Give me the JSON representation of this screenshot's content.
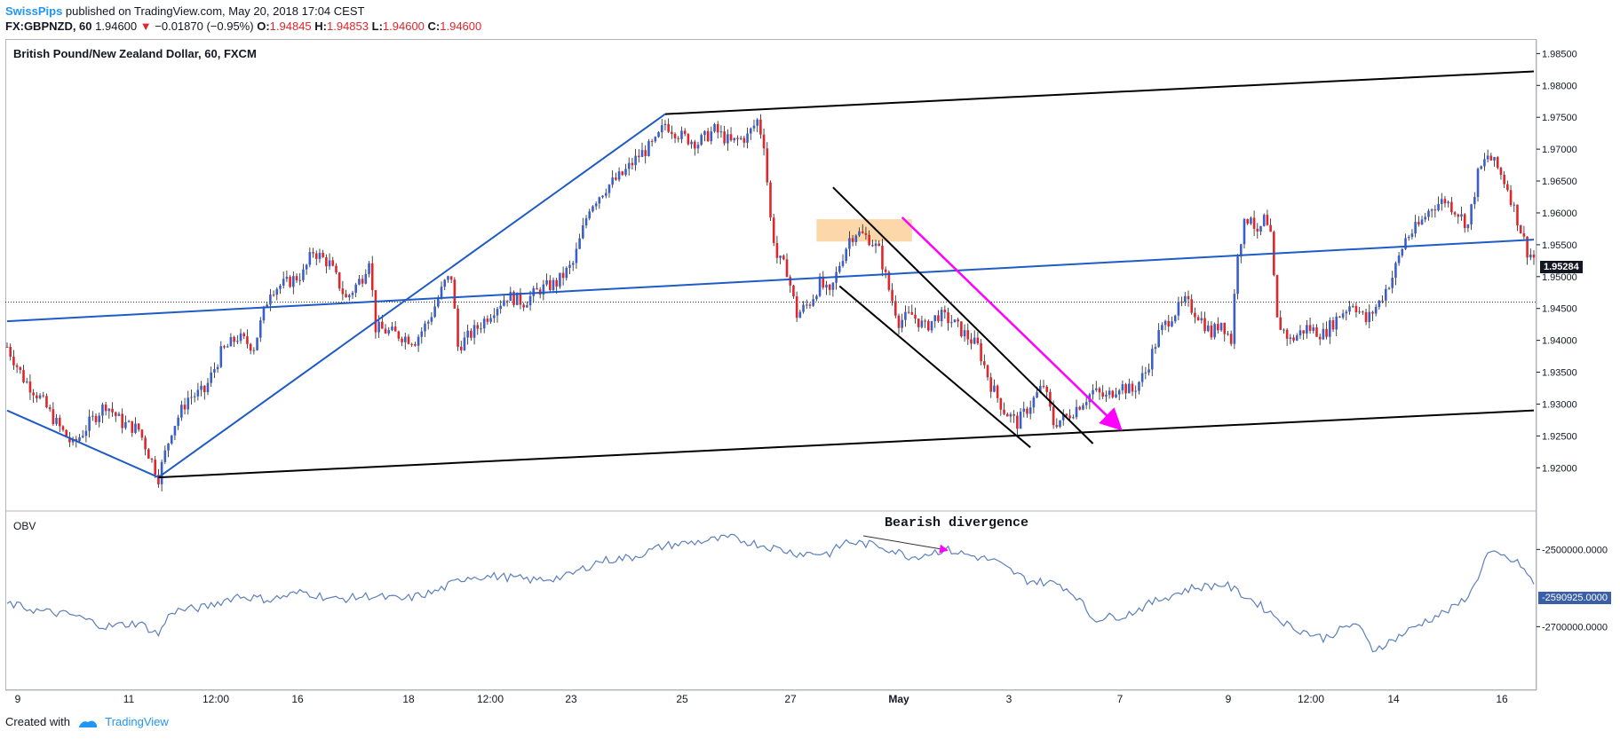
{
  "header": {
    "author": "SwissPips",
    "published_text": " published on TradingView.com, May 20, 2018 17:04 CEST",
    "symbol": "FX:GBPNZD, 60",
    "last": "1.94600",
    "change_arrow": "▼",
    "change": "−0.01870 (−0.95%)",
    "o_label": "O:",
    "o": "1.94845",
    "h_label": "H:",
    "h": "1.94853",
    "l_label": "L:",
    "l": "1.94600",
    "c_label": "C:",
    "c": "1.94600"
  },
  "footer": {
    "created_with": "Created with",
    "brand": "TradingView"
  },
  "colors": {
    "up": "#3a5fc8",
    "down": "#e0262b",
    "trendline_blue": "#1e5bc6",
    "channel_black": "#000000",
    "arrow_magenta": "#ff00ff",
    "zone_orange": "#f9c98e",
    "obv_line": "#5b7fbd"
  },
  "chart_data": [
    {
      "type": "candlestick",
      "title": "British Pound/New Zealand Dollar, 60, FXCM",
      "x_ticks": [
        "9",
        "11",
        "12:00",
        "16",
        "18",
        "12:00",
        "23",
        "25",
        "27",
        "May",
        "3",
        "7",
        "9",
        "12:00",
        "14",
        "16"
      ],
      "y_ticks": [
        "1.92000",
        "1.92500",
        "1.93000",
        "1.93500",
        "1.94000",
        "1.94500",
        "1.95000",
        "1.95500",
        "1.96000",
        "1.96500",
        "1.97000",
        "1.97500",
        "1.98000",
        "1.98500"
      ],
      "ylim": [
        1.9135,
        1.987
      ],
      "last_price_label": "1.95284",
      "grid": false,
      "price_path_keypoints": [
        [
          0,
          1.939
        ],
        [
          5,
          1.934
        ],
        [
          10,
          1.931
        ],
        [
          15,
          1.927
        ],
        [
          20,
          1.9235
        ],
        [
          25,
          1.927
        ],
        [
          30,
          1.93
        ],
        [
          35,
          1.927
        ],
        [
          40,
          1.926
        ],
        [
          46,
          1.9185
        ],
        [
          50,
          1.926
        ],
        [
          55,
          1.931
        ],
        [
          60,
          1.932
        ],
        [
          65,
          1.938
        ],
        [
          70,
          1.9405
        ],
        [
          75,
          1.939
        ],
        [
          80,
          1.948
        ],
        [
          85,
          1.949
        ],
        [
          90,
          1.9505
        ],
        [
          93,
          1.954
        ],
        [
          98,
          1.952
        ],
        [
          103,
          1.9465
        ],
        [
          108,
          1.95
        ],
        [
          110,
          1.953
        ],
        [
          112,
          1.942
        ],
        [
          118,
          1.941
        ],
        [
          124,
          1.94
        ],
        [
          128,
          1.943
        ],
        [
          133,
          1.949
        ],
        [
          135,
          1.95
        ],
        [
          137,
          1.939
        ],
        [
          143,
          1.942
        ],
        [
          148,
          1.945
        ],
        [
          152,
          1.947
        ],
        [
          157,
          1.946
        ],
        [
          162,
          1.948
        ],
        [
          167,
          1.949
        ],
        [
          172,
          1.952
        ],
        [
          177,
          1.961
        ],
        [
          182,
          1.964
        ],
        [
          187,
          1.966
        ],
        [
          192,
          1.969
        ],
        [
          197,
          1.971
        ],
        [
          200,
          1.974
        ],
        [
          205,
          1.972
        ],
        [
          210,
          1.971
        ],
        [
          215,
          1.973
        ],
        [
          220,
          1.971
        ],
        [
          225,
          1.972
        ],
        [
          228,
          1.9745
        ],
        [
          230,
          1.971
        ],
        [
          232,
          1.959
        ],
        [
          234,
          1.953
        ],
        [
          237,
          1.951
        ],
        [
          240,
          1.944
        ],
        [
          244,
          1.946
        ],
        [
          247,
          1.949
        ],
        [
          250,
          1.947
        ],
        [
          253,
          1.952
        ],
        [
          256,
          1.956
        ],
        [
          258,
          1.957
        ],
        [
          262,
          1.956
        ],
        [
          265,
          1.954
        ],
        [
          268,
          1.948
        ],
        [
          271,
          1.943
        ],
        [
          275,
          1.944
        ],
        [
          279,
          1.942
        ],
        [
          283,
          1.944
        ],
        [
          287,
          1.943
        ],
        [
          291,
          1.941
        ],
        [
          295,
          1.939
        ],
        [
          299,
          1.933
        ],
        [
          303,
          1.929
        ],
        [
          307,
          1.927
        ],
        [
          311,
          1.93
        ],
        [
          315,
          1.933
        ],
        [
          318,
          1.927
        ],
        [
          322,
          1.928
        ],
        [
          326,
          1.93
        ],
        [
          330,
          1.932
        ],
        [
          334,
          1.931
        ],
        [
          338,
          1.933
        ],
        [
          342,
          1.932
        ],
        [
          346,
          1.935
        ],
        [
          350,
          1.941
        ],
        [
          354,
          1.944
        ],
        [
          358,
          1.946
        ],
        [
          362,
          1.944
        ],
        [
          366,
          1.941
        ],
        [
          369,
          1.943
        ],
        [
          372,
          1.94
        ],
        [
          374,
          1.954
        ],
        [
          376,
          1.958
        ],
        [
          378,
          1.96
        ],
        [
          380,
          1.956
        ],
        [
          382,
          1.959
        ],
        [
          384,
          1.956
        ],
        [
          386,
          1.943
        ],
        [
          390,
          1.94
        ],
        [
          395,
          1.942
        ],
        [
          400,
          1.941
        ],
        [
          405,
          1.944
        ],
        [
          409,
          1.946
        ],
        [
          413,
          1.943
        ],
        [
          417,
          1.946
        ],
        [
          421,
          1.95
        ],
        [
          425,
          1.956
        ],
        [
          429,
          1.958
        ],
        [
          433,
          1.961
        ],
        [
          437,
          1.962
        ],
        [
          441,
          1.96
        ],
        [
          444,
          1.958
        ],
        [
          447,
          1.966
        ],
        [
          450,
          1.969
        ],
        [
          453,
          1.967
        ],
        [
          456,
          1.964
        ],
        [
          459,
          1.959
        ],
        [
          462,
          1.954
        ],
        [
          464,
          1.953
        ]
      ],
      "drawings": [
        {
          "kind": "trendline",
          "color": "blue",
          "points": [
            [
              0,
              1.929
            ],
            [
              46,
              1.9185
            ]
          ]
        },
        {
          "kind": "trendline",
          "color": "blue",
          "points": [
            [
              46,
              1.9185
            ],
            [
              200,
              1.9755
            ]
          ]
        },
        {
          "kind": "trendline",
          "color": "blue",
          "points": [
            [
              0,
              1.943
            ],
            [
              464,
              1.9558
            ]
          ]
        },
        {
          "kind": "trendline",
          "color": "black",
          "points": [
            [
              200,
              1.9755
            ],
            [
              464,
              1.9822
            ]
          ]
        },
        {
          "kind": "trendline",
          "color": "black",
          "points": [
            [
              46,
              1.9185
            ],
            [
              464,
              1.929
            ]
          ]
        },
        {
          "kind": "trendline",
          "color": "black",
          "points": [
            [
              251,
              1.964
            ],
            [
              330,
              1.9238
            ]
          ]
        },
        {
          "kind": "trendline",
          "color": "black",
          "points": [
            [
              253,
              1.9485
            ],
            [
              311,
              1.9232
            ]
          ]
        },
        {
          "kind": "arrow",
          "color": "magenta",
          "points": [
            [
              272,
              1.9593
            ],
            [
              338,
              1.9263
            ]
          ]
        },
        {
          "kind": "zone",
          "color": "orange",
          "points": [
            [
              246,
              1.959
            ],
            [
              275,
              1.9555
            ]
          ]
        },
        {
          "kind": "horizontal_dotted",
          "value": 1.946
        }
      ]
    },
    {
      "type": "line",
      "label": "OBV",
      "y_ticks": [
        "-2500000.0000",
        "-2700000.0000"
      ],
      "ylim": [
        -2860000,
        -2405000
      ],
      "last_value_label": "-2590925.0000",
      "annotation": "Bearish divergence",
      "series": [
        {
          "values_keypoints": [
            [
              0,
              -2640000
            ],
            [
              10,
              -2660000
            ],
            [
              20,
              -2670000
            ],
            [
              30,
              -2700000
            ],
            [
              40,
              -2690000
            ],
            [
              46,
              -2720000
            ],
            [
              50,
              -2660000
            ],
            [
              60,
              -2650000
            ],
            [
              70,
              -2620000
            ],
            [
              80,
              -2630000
            ],
            [
              90,
              -2610000
            ],
            [
              100,
              -2630000
            ],
            [
              110,
              -2620000
            ],
            [
              120,
              -2630000
            ],
            [
              130,
              -2610000
            ],
            [
              140,
              -2570000
            ],
            [
              150,
              -2570000
            ],
            [
              160,
              -2580000
            ],
            [
              170,
              -2570000
            ],
            [
              180,
              -2530000
            ],
            [
              190,
              -2520000
            ],
            [
              200,
              -2490000
            ],
            [
              210,
              -2480000
            ],
            [
              220,
              -2470000
            ],
            [
              230,
              -2490000
            ],
            [
              240,
              -2510000
            ],
            [
              250,
              -2510000
            ],
            [
              255,
              -2480000
            ],
            [
              265,
              -2490000
            ],
            [
              275,
              -2520000
            ],
            [
              285,
              -2500000
            ],
            [
              290,
              -2510000
            ],
            [
              300,
              -2530000
            ],
            [
              310,
              -2580000
            ],
            [
              320,
              -2590000
            ],
            [
              325,
              -2620000
            ],
            [
              330,
              -2680000
            ],
            [
              340,
              -2670000
            ],
            [
              350,
              -2630000
            ],
            [
              360,
              -2600000
            ],
            [
              370,
              -2590000
            ],
            [
              380,
              -2640000
            ],
            [
              390,
              -2700000
            ],
            [
              400,
              -2730000
            ],
            [
              410,
              -2690000
            ],
            [
              415,
              -2760000
            ],
            [
              420,
              -2740000
            ],
            [
              430,
              -2690000
            ],
            [
              440,
              -2650000
            ],
            [
              445,
              -2610000
            ],
            [
              450,
              -2510000
            ],
            [
              455,
              -2520000
            ],
            [
              460,
              -2540000
            ],
            [
              464,
              -2590000
            ]
          ]
        }
      ]
    }
  ]
}
